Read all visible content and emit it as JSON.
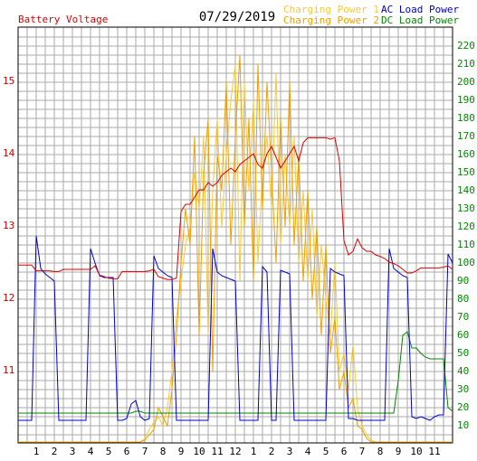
{
  "chart_data": {
    "type": "line",
    "title": "07/29/2019",
    "x": [
      0,
      0.25,
      0.5,
      0.75,
      1,
      1.25,
      1.5,
      1.75,
      2,
      2.25,
      2.5,
      2.75,
      3,
      3.25,
      3.5,
      3.75,
      4,
      4.25,
      4.5,
      4.75,
      5,
      5.25,
      5.5,
      5.75,
      6,
      6.25,
      6.5,
      6.75,
      7,
      7.25,
      7.5,
      7.75,
      8,
      8.25,
      8.5,
      8.75,
      9,
      9.25,
      9.5,
      9.75,
      10,
      10.25,
      10.5,
      10.75,
      11,
      11.25,
      11.5,
      11.75,
      12,
      12.25,
      12.5,
      12.75,
      13,
      13.25,
      13.5,
      13.75,
      14,
      14.25,
      14.5,
      14.75,
      15,
      15.25,
      15.5,
      15.75,
      16,
      16.25,
      16.5,
      16.75,
      17,
      17.25,
      17.5,
      17.75,
      18,
      18.25,
      18.5,
      18.75,
      19,
      19.25,
      19.5,
      19.75,
      20,
      20.25,
      20.5,
      20.75,
      21,
      21.25,
      21.5,
      21.75,
      22,
      22.25,
      22.5,
      22.75,
      23,
      23.25,
      23.5,
      23.75,
      24
    ],
    "xlim": [
      0,
      24
    ],
    "xticks": [
      1,
      2,
      3,
      4,
      5,
      6,
      7,
      8,
      9,
      10,
      11,
      12,
      {
        "value": 13,
        "label": "1"
      },
      {
        "value": 14,
        "label": "2"
      },
      {
        "value": 15,
        "label": "3"
      },
      {
        "value": 16,
        "label": "4"
      },
      {
        "value": 17,
        "label": "5"
      },
      {
        "value": 18,
        "label": "6"
      },
      {
        "value": 19,
        "label": "7"
      },
      {
        "value": 20,
        "label": "8"
      },
      {
        "value": 21,
        "label": "9"
      },
      {
        "value": 22,
        "label": "10"
      },
      {
        "value": 23,
        "label": "11"
      }
    ],
    "ylim": [
      10,
      15.75
    ],
    "yticks": [
      11,
      12,
      13,
      14,
      15
    ],
    "y2lim": [
      0.5,
      230.5
    ],
    "y2ticks": [
      10,
      20,
      30,
      40,
      50,
      60,
      70,
      80,
      90,
      100,
      110,
      120,
      130,
      140,
      150,
      160,
      170,
      180,
      190,
      200,
      210,
      220
    ],
    "grid": true,
    "series": [
      {
        "name": "Battery Voltage",
        "color": "#dd0000",
        "axis": "y",
        "values": [
          12.46,
          12.46,
          12.46,
          12.46,
          12.38,
          12.38,
          12.38,
          12.38,
          12.37,
          12.37,
          12.4,
          12.4,
          12.4,
          12.4,
          12.4,
          12.4,
          12.4,
          12.45,
          12.32,
          12.3,
          12.28,
          12.27,
          12.27,
          12.37,
          12.37,
          12.37,
          12.37,
          12.37,
          12.37,
          12.38,
          12.4,
          12.3,
          12.28,
          12.26,
          12.26,
          12.28,
          13.2,
          13.3,
          13.3,
          13.4,
          13.5,
          13.5,
          13.6,
          13.55,
          13.6,
          13.7,
          13.75,
          13.8,
          13.75,
          13.85,
          13.9,
          13.95,
          14.0,
          13.85,
          13.8,
          14.0,
          14.1,
          13.95,
          13.8,
          13.9,
          14.0,
          14.1,
          13.9,
          14.15,
          14.22,
          14.22,
          14.22,
          14.22,
          14.22,
          14.2,
          14.22,
          13.9,
          12.8,
          12.6,
          12.65,
          12.82,
          12.7,
          12.65,
          12.65,
          12.6,
          12.58,
          12.55,
          12.5,
          12.48,
          12.45,
          12.4,
          12.35,
          12.35,
          12.38,
          12.42,
          12.42,
          12.42,
          12.42,
          12.42,
          12.43,
          12.45,
          12.4
        ]
      },
      {
        "name": "Charging Power 1",
        "color": "#f8c838",
        "axis": "y2",
        "values": [
          1,
          1,
          1,
          1,
          1,
          1,
          1,
          1,
          1,
          1,
          1,
          1,
          1,
          1,
          1,
          1,
          1,
          1,
          1,
          1,
          1,
          1,
          1,
          1,
          1,
          1,
          1,
          1,
          3,
          8,
          12,
          15,
          10,
          20,
          40,
          70,
          90,
          110,
          120,
          150,
          130,
          170,
          60,
          140,
          180,
          120,
          160,
          190,
          210,
          90,
          200,
          140,
          190,
          100,
          150,
          170,
          130,
          205,
          110,
          160,
          120,
          170,
          100,
          140,
          90,
          130,
          70,
          110,
          80,
          60,
          100,
          40,
          50,
          30,
          55,
          20,
          10,
          5,
          2,
          1,
          1,
          1,
          1,
          1,
          1,
          1,
          1,
          1,
          1,
          1,
          1,
          1,
          1,
          1,
          1,
          1,
          1
        ]
      },
      {
        "name": "Charging Power 2",
        "color": "#f0a000",
        "axis": "y2",
        "values": [
          1,
          1,
          1,
          1,
          1,
          1,
          1,
          1,
          1,
          1,
          1,
          1,
          1,
          1,
          1,
          1,
          1,
          1,
          1,
          1,
          1,
          1,
          1,
          1,
          1,
          1,
          1,
          1,
          2,
          5,
          8,
          20,
          15,
          10,
          30,
          60,
          100,
          130,
          110,
          170,
          60,
          150,
          180,
          40,
          160,
          140,
          200,
          110,
          170,
          215,
          120,
          180,
          90,
          210,
          130,
          200,
          150,
          100,
          180,
          120,
          200,
          110,
          160,
          90,
          140,
          80,
          120,
          60,
          110,
          50,
          70,
          30,
          40,
          20,
          25,
          10,
          8,
          3,
          1,
          1,
          1,
          1,
          1,
          1,
          1,
          1,
          1,
          1,
          1,
          1,
          1,
          1,
          1,
          1,
          1,
          1,
          1
        ]
      },
      {
        "name": "AC Load Power",
        "color": "#0000cc",
        "axis": "y2",
        "values": [
          13,
          13,
          13,
          13,
          115,
          97,
          94,
          92,
          90,
          13,
          13,
          13,
          13,
          13,
          13,
          13,
          108,
          100,
          93,
          92,
          92,
          92,
          13,
          13,
          14,
          22,
          24,
          15,
          13,
          14,
          104,
          97,
          95,
          93,
          92,
          13,
          13,
          13,
          13,
          13,
          13,
          13,
          13,
          108,
          95,
          93,
          92,
          91,
          90,
          13,
          13,
          13,
          13,
          13,
          98,
          95,
          13,
          13,
          96,
          95,
          94,
          13,
          13,
          13,
          13,
          13,
          13,
          13,
          13,
          97,
          95,
          94,
          93,
          14,
          14,
          13,
          13,
          13,
          13,
          13,
          13,
          13,
          108,
          97,
          95,
          93,
          92,
          15,
          14,
          15,
          14,
          13,
          15,
          16,
          16,
          105,
          100
        ]
      },
      {
        "name": "DC Load Power",
        "color": "#008800",
        "axis": "y2",
        "values": [
          17,
          17,
          17,
          17,
          17,
          17,
          17,
          17,
          17,
          17,
          17,
          17,
          17,
          17,
          17,
          17,
          17,
          17,
          17,
          17,
          17,
          17,
          17,
          17,
          17,
          17,
          18,
          18,
          17,
          17,
          17,
          17,
          17,
          17,
          17,
          17,
          17,
          17,
          17,
          17,
          17,
          17,
          17,
          17,
          17,
          17,
          17,
          17,
          17,
          17,
          17,
          17,
          17,
          17,
          17,
          17,
          17,
          17,
          17,
          17,
          17,
          17,
          17,
          17,
          17,
          17,
          17,
          17,
          17,
          17,
          17,
          17,
          17,
          17,
          17,
          17,
          17,
          17,
          17,
          17,
          17,
          17,
          17,
          17,
          35,
          60,
          62,
          53,
          53,
          50,
          48,
          47,
          47,
          47,
          47,
          20,
          18
        ]
      }
    ]
  }
}
